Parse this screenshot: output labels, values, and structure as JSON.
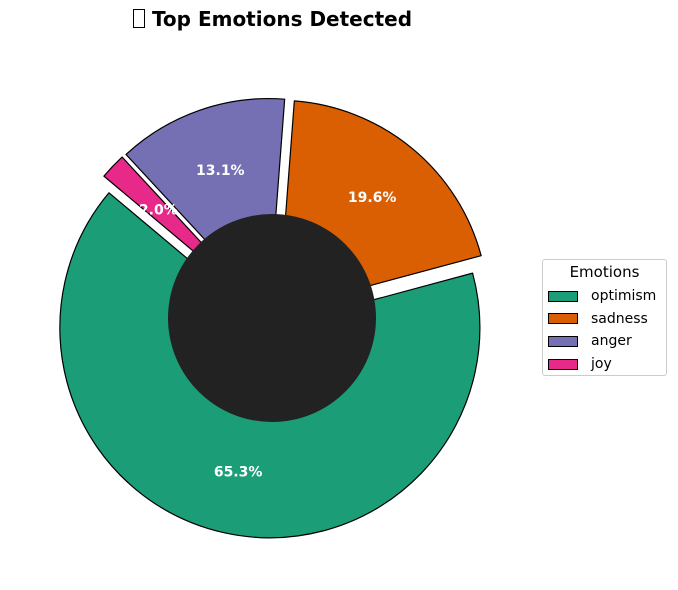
{
  "title": "Top Emotions Detected",
  "chart_data": {
    "type": "pie",
    "title": "Top Emotions Detected",
    "labels": [
      "optimism",
      "sadness",
      "anger",
      "joy"
    ],
    "values": [
      65.3,
      19.6,
      13.1,
      2.0
    ],
    "value_labels": [
      "65.3%",
      "19.6%",
      "13.1%",
      "2.0%"
    ],
    "colors": [
      "#1b9e77",
      "#d95f02",
      "#7570b3",
      "#e7298a"
    ],
    "center_hole_color": "#222222",
    "legend_title": "Emotions",
    "legend_position": "right",
    "exploded": true
  }
}
